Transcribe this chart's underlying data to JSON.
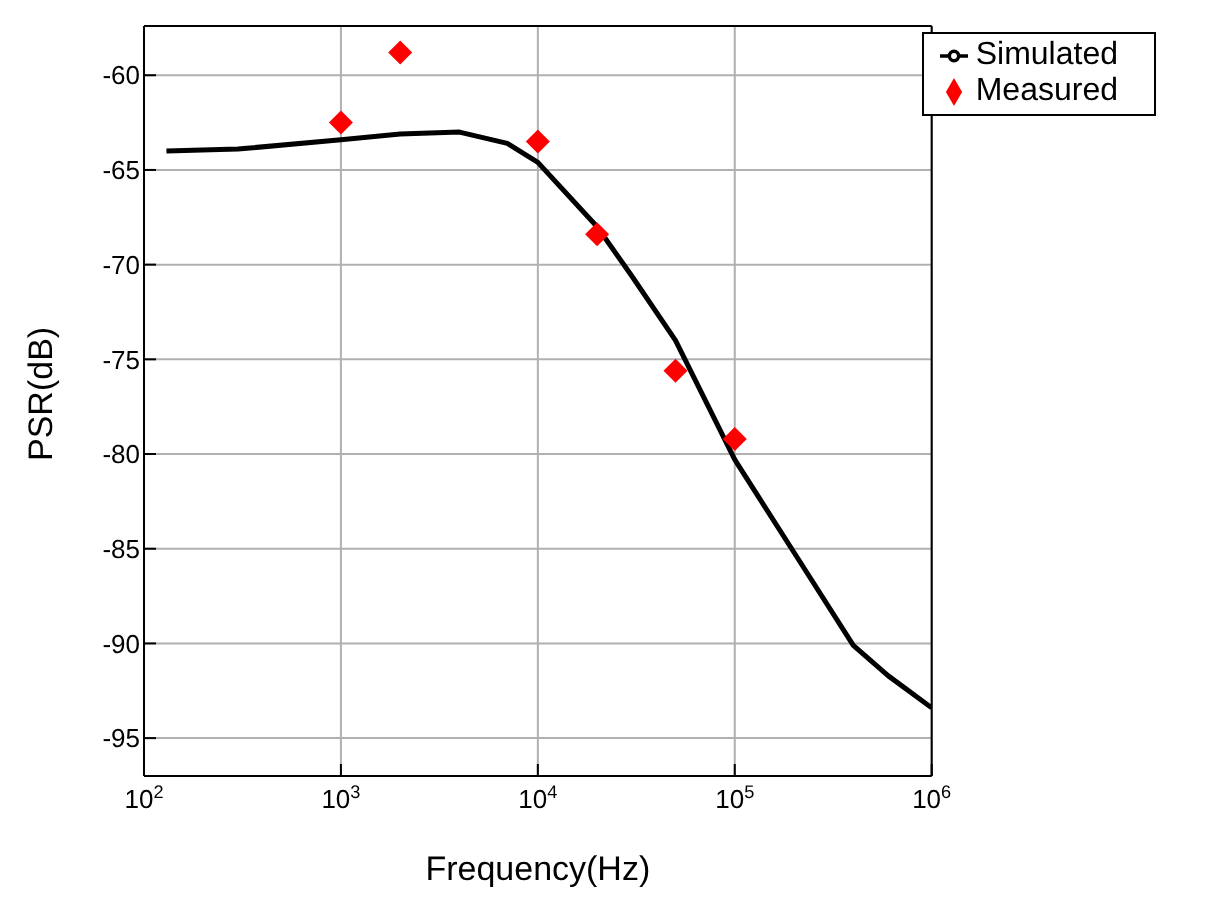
{
  "chart_data": {
    "type": "line",
    "xlabel": "Frequency(Hz)",
    "ylabel": "PSR(dB)",
    "log": "x",
    "xlim": [
      100,
      1000000
    ],
    "xticks": [
      {
        "value": 100,
        "label": "10$^{2}$"
      },
      {
        "value": 1000,
        "label": "10$^{3}$"
      },
      {
        "value": 10000,
        "label": "10$^{4}$"
      },
      {
        "value": 100000,
        "label": "10$^{5}$"
      },
      {
        "value": 1000000,
        "label": "10$^{6}$"
      }
    ],
    "ylim": [
      -97,
      -57.4
    ],
    "yticks": [
      -95,
      -90,
      -85,
      -80,
      -75,
      -70,
      -65,
      -60
    ],
    "grid": true,
    "legend": "top right",
    "series": [
      {
        "name": "Simulated",
        "color": "#000000",
        "marker": "none",
        "x": [
          130,
          300,
          1000,
          2000,
          4000,
          7000,
          10000,
          20000,
          30000,
          50000,
          100000,
          200000,
          400000,
          600000,
          1000000
        ],
        "values": [
          -64.0,
          -63.9,
          -63.4,
          -63.1,
          -63.0,
          -63.6,
          -64.6,
          -68.0,
          -70.6,
          -74.0,
          -80.3,
          -85.2,
          -90.1,
          -91.7,
          -93.4
        ]
      },
      {
        "name": "Measured",
        "type": "scatter",
        "color": "#ff0000",
        "marker": "diamond",
        "x": [
          1000,
          2000,
          10000,
          20000,
          50000,
          100000
        ],
        "values": [
          -62.5,
          -58.8,
          -63.5,
          -68.4,
          -75.6,
          -79.2
        ]
      }
    ]
  }
}
